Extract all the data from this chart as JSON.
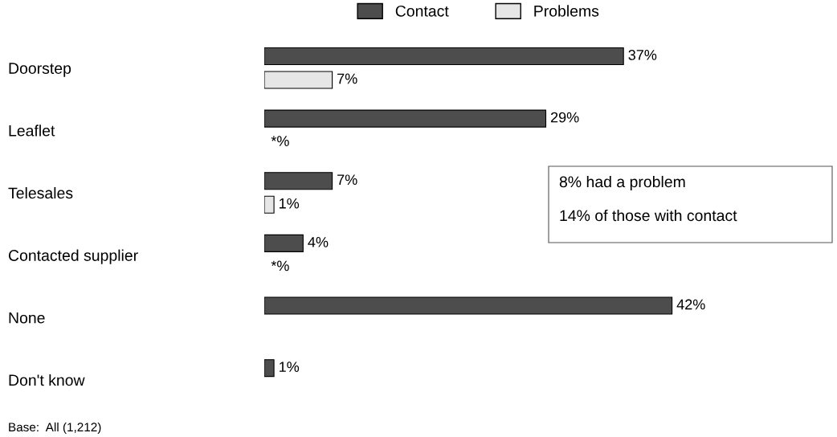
{
  "chart_data": {
    "type": "bar",
    "orientation": "horizontal",
    "categories": [
      "Doorstep",
      "Leaflet",
      "Telesales",
      "Contacted supplier",
      "None",
      "Don't know"
    ],
    "series": [
      {
        "name": "Contact",
        "color": "#4d4d4d",
        "values": [
          37,
          29,
          7,
          4,
          42,
          1
        ],
        "value_labels": [
          "37%",
          "29%",
          "7%",
          "4%",
          "42%",
          "1%"
        ]
      },
      {
        "name": "Problems",
        "color": "#e6e6e6",
        "values": [
          7,
          null,
          1,
          null,
          null,
          null
        ],
        "value_labels": [
          "7%",
          null,
          "1%",
          null,
          null,
          null
        ]
      }
    ],
    "legend": "top",
    "grid": false,
    "annotations": [
      "*%",
      "*%",
      "8% had a problem",
      "14% of those with contact",
      "Base:  All (1,212)"
    ]
  }
}
